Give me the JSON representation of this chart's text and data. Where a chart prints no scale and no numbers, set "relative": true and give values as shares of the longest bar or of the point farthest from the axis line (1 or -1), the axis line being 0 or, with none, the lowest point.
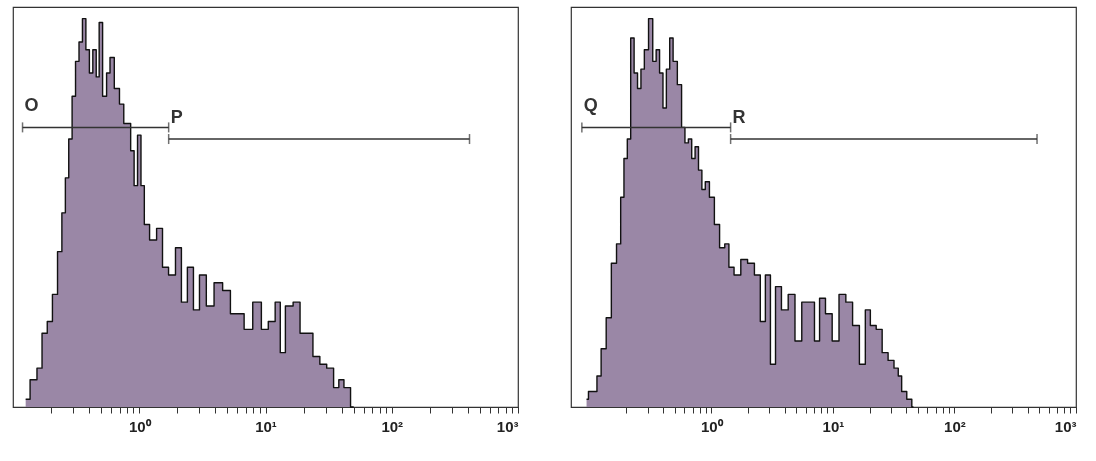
{
  "chart_data": [
    {
      "type": "area",
      "relative": true,
      "xlim": [
        0.1,
        1000
      ],
      "log": "x",
      "xticks": [
        {
          "value": 0.2,
          "label": null
        },
        {
          "value": 0.3,
          "label": null
        },
        {
          "value": 0.4,
          "label": null
        },
        {
          "value": 0.5,
          "label": null
        },
        {
          "value": 0.6,
          "label": null
        },
        {
          "value": 0.7,
          "label": null
        },
        {
          "value": 0.8,
          "label": null
        },
        {
          "value": 0.9,
          "label": null
        },
        {
          "value": 1,
          "label": "10⁰"
        },
        {
          "value": 2,
          "label": null
        },
        {
          "value": 3,
          "label": null
        },
        {
          "value": 4,
          "label": null
        },
        {
          "value": 5,
          "label": null
        },
        {
          "value": 6,
          "label": null
        },
        {
          "value": 7,
          "label": null
        },
        {
          "value": 8,
          "label": null
        },
        {
          "value": 9,
          "label": null
        },
        {
          "value": 10,
          "label": "10¹"
        },
        {
          "value": 20,
          "label": null
        },
        {
          "value": 30,
          "label": null
        },
        {
          "value": 40,
          "label": null
        },
        {
          "value": 50,
          "label": null
        },
        {
          "value": 60,
          "label": null
        },
        {
          "value": 70,
          "label": null
        },
        {
          "value": 80,
          "label": null
        },
        {
          "value": 90,
          "label": null
        },
        {
          "value": 100,
          "label": "10²"
        },
        {
          "value": 200,
          "label": null
        },
        {
          "value": 300,
          "label": null
        },
        {
          "value": 400,
          "label": null
        },
        {
          "value": 500,
          "label": null
        },
        {
          "value": 600,
          "label": null
        },
        {
          "value": 700,
          "label": null
        },
        {
          "value": 800,
          "label": null
        },
        {
          "value": 900,
          "label": null
        },
        {
          "value": 1000,
          "label": "10³"
        }
      ],
      "x": [
        0.126,
        0.148,
        0.162,
        0.178,
        0.196,
        0.215,
        0.236,
        0.252,
        0.268,
        0.285,
        0.303,
        0.323,
        0.344,
        0.366,
        0.39,
        0.416,
        0.442,
        0.471,
        0.492,
        0.534,
        0.569,
        0.605,
        0.665,
        0.731,
        0.778,
        0.828,
        0.883,
        0.939,
        1.0,
        1.065,
        1.13,
        1.29,
        1.46,
        1.6,
        1.82,
        2.06,
        2.26,
        2.56,
        2.82,
        3.19,
        3.62,
        4.23,
        4.95,
        5.62,
        6.36,
        7.21,
        8.71,
        9.88,
        11.2,
        12.7,
        13.5,
        15.3,
        17.9,
        19.7,
        22.3,
        25.3,
        28.7,
        32.5,
        36.9,
        39.3,
        44.5,
        50
      ],
      "series": [
        {
          "type": "line",
          "name": "O",
          "color": "#333333",
          "x": [
            0.119,
            1.71
          ],
          "values": [
            0.72,
            0.72
          ]
        },
        {
          "type": "line",
          "name": "P",
          "color": "#333333",
          "x": [
            1.71,
            413
          ],
          "values": [
            0.69,
            0.69
          ]
        },
        {
          "color": "#9a87a6",
          "values": [
            0.02,
            0.07,
            0.1,
            0.19,
            0.22,
            0.29,
            0.4,
            0.5,
            0.59,
            0.69,
            0.8,
            0.89,
            0.94,
            1,
            0.92,
            0.86,
            0.92,
            0.85,
            0.99,
            0.8,
            0.86,
            0.9,
            0.82,
            0.78,
            0.73,
            0.73,
            0.66,
            0.57,
            0.7,
            0.57,
            0.47,
            0.43,
            0.46,
            0.36,
            0.34,
            0.41,
            0.27,
            0.36,
            0.25,
            0.34,
            0.26,
            0.32,
            0.3,
            0.24,
            0.24,
            0.2,
            0.27,
            0.2,
            0.22,
            0.27,
            0.14,
            0.26,
            0.27,
            0.19,
            0.19,
            0.13,
            0.11,
            0.1,
            0.05,
            0.07,
            0.05,
            0
          ]
        }
      ],
      "marker": "none"
    },
    {
      "type": "area",
      "relative": true,
      "xlim": [
        0.07,
        1000
      ],
      "log": "x",
      "xticks": [
        {
          "value": 0.2,
          "label": null
        },
        {
          "value": 0.3,
          "label": null
        },
        {
          "value": 0.4,
          "label": null
        },
        {
          "value": 0.5,
          "label": null
        },
        {
          "value": 0.6,
          "label": null
        },
        {
          "value": 0.7,
          "label": null
        },
        {
          "value": 0.8,
          "label": null
        },
        {
          "value": 0.9,
          "label": null
        },
        {
          "value": 1,
          "label": "10⁰"
        },
        {
          "value": 2,
          "label": null
        },
        {
          "value": 3,
          "label": null
        },
        {
          "value": 4,
          "label": null
        },
        {
          "value": 5,
          "label": null
        },
        {
          "value": 6,
          "label": null
        },
        {
          "value": 7,
          "label": null
        },
        {
          "value": 8,
          "label": null
        },
        {
          "value": 9,
          "label": null
        },
        {
          "value": 10,
          "label": "10¹"
        },
        {
          "value": 20,
          "label": null
        },
        {
          "value": 30,
          "label": null
        },
        {
          "value": 40,
          "label": null
        },
        {
          "value": 50,
          "label": null
        },
        {
          "value": 60,
          "label": null
        },
        {
          "value": 70,
          "label": null
        },
        {
          "value": 80,
          "label": null
        },
        {
          "value": 90,
          "label": null
        },
        {
          "value": 100,
          "label": "10²"
        },
        {
          "value": 200,
          "label": null
        },
        {
          "value": 300,
          "label": null
        },
        {
          "value": 400,
          "label": null
        },
        {
          "value": 500,
          "label": null
        },
        {
          "value": 600,
          "label": null
        },
        {
          "value": 700,
          "label": null
        },
        {
          "value": 800,
          "label": null
        },
        {
          "value": 900,
          "label": null
        },
        {
          "value": 1000,
          "label": "10³"
        }
      ],
      "x": [
        0.094,
        0.101,
        0.111,
        0.118,
        0.13,
        0.143,
        0.158,
        0.174,
        0.185,
        0.197,
        0.21,
        0.224,
        0.239,
        0.255,
        0.272,
        0.29,
        0.319,
        0.34,
        0.363,
        0.387,
        0.413,
        0.44,
        0.469,
        0.5,
        0.551,
        0.587,
        0.626,
        0.668,
        0.711,
        0.759,
        0.809,
        0.863,
        0.92,
        1.01,
        1.11,
        1.23,
        1.35,
        1.44,
        1.64,
        1.86,
        2.12,
        2.41,
        2.65,
        2.92,
        3.21,
        3.54,
        4.02,
        4.57,
        5.2,
        5.91,
        6.72,
        7.4,
        8.15,
        9.26,
        10.5,
        12.0,
        13.6,
        15.5,
        17.6,
        19.4,
        21.3,
        24.2,
        26.7,
        30.3,
        33.4,
        35.6,
        38.0,
        43.2,
        46.0
      ],
      "series": [
        {
          "type": "line",
          "name": "Q",
          "color": "#333333",
          "x": [
            0.086,
            1.44
          ],
          "values": [
            0.72,
            0.72
          ]
        },
        {
          "type": "line",
          "name": "R",
          "color": "#333333",
          "x": [
            1.44,
            478
          ],
          "values": [
            0.69,
            0.69
          ]
        },
        {
          "color": "#9a87a6",
          "values": [
            0.02,
            0.04,
            0.04,
            0.08,
            0.15,
            0.23,
            0.37,
            0.42,
            0.54,
            0.64,
            0.69,
            0.95,
            0.86,
            0.82,
            0.87,
            0.92,
            1,
            0.89,
            0.92,
            0.86,
            0.77,
            0.87,
            0.95,
            0.89,
            0.83,
            0.72,
            0.68,
            0.69,
            0.64,
            0.67,
            0.61,
            0.56,
            0.58,
            0.54,
            0.47,
            0.41,
            0.42,
            0.36,
            0.34,
            0.38,
            0.37,
            0.34,
            0.22,
            0.34,
            0.11,
            0.31,
            0.25,
            0.29,
            0.17,
            0.27,
            0.27,
            0.17,
            0.28,
            0.24,
            0.17,
            0.29,
            0.27,
            0.21,
            0.11,
            0.25,
            0.21,
            0.2,
            0.14,
            0.12,
            0.1,
            0.08,
            0.04,
            0.02,
            0
          ]
        }
      ],
      "marker": "none"
    }
  ]
}
